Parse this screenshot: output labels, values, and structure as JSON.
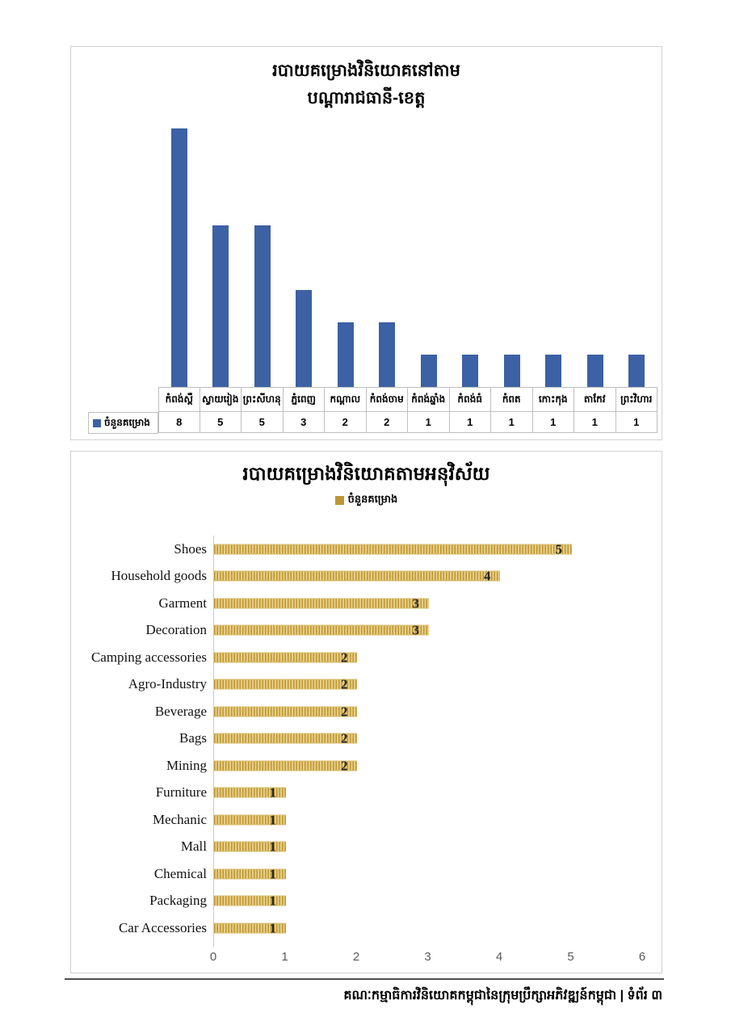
{
  "colors": {
    "blue_bar": "#3c61a4",
    "gold_dark": "#bd9733",
    "gold_light": "#e7cd87",
    "table_border": "#bfbfbf",
    "card_border": "#d2d2d2",
    "axis_text": "#595959"
  },
  "footer": {
    "text": "គណៈកម្មាធិការវិនិយោគកម្ពុជានៃក្រុមប្រឹក្សាអភិវឌ្ឍន៍កម្ពុជា | ទំព័រ ៣"
  },
  "chart_data": [
    {
      "type": "bar",
      "title_lines": [
        "របាយគម្រោងវិនិយោគនៅតាម",
        "បណ្ដារាជធានី-ខេត្ត"
      ],
      "legend": "ចំនួនគម្រោង",
      "categories": [
        "កំពង់ស្ពឺ",
        "ស្វាយរៀង",
        "ព្រះសីហនុ",
        "ភ្នំពេញ",
        "កណ្ដាល",
        "កំពង់ចាម",
        "កំពង់ឆ្នាំង",
        "កំពង់ធំ",
        "កំពត",
        "កោះកុង",
        "តាកែវ",
        "ព្រះវិហារ"
      ],
      "values": [
        8,
        5,
        5,
        3,
        2,
        2,
        1,
        1,
        1,
        1,
        1,
        1
      ],
      "ylim": [
        0,
        8
      ],
      "bar_color": "#3c61a4",
      "data_table": true,
      "grid": false,
      "legend_position": "table-left"
    },
    {
      "type": "bar",
      "orientation": "horizontal",
      "title": "របាយគម្រោងវិនិយោគតាមអនុវិស័យ",
      "legend": "ចំនួនគម្រោង",
      "categories": [
        "Shoes",
        "Household goods",
        "Garment",
        "Decoration",
        "Camping accessories",
        "Agro-Industry",
        "Beverage",
        "Bags",
        "Mining",
        "Furniture",
        "Mechanic",
        "Mall",
        "Chemical",
        "Packaging",
        "Car Accessories"
      ],
      "values": [
        5,
        4,
        3,
        3,
        2,
        2,
        2,
        2,
        2,
        1,
        1,
        1,
        1,
        1,
        1
      ],
      "xlim": [
        0,
        6
      ],
      "x_ticks": [
        "0",
        "1",
        "2",
        "3",
        "4",
        "5",
        "6"
      ],
      "bar_pattern": "gold-vertical-stripes",
      "data_labels": "inside-end",
      "grid": false,
      "legend_position": "top-center"
    }
  ]
}
